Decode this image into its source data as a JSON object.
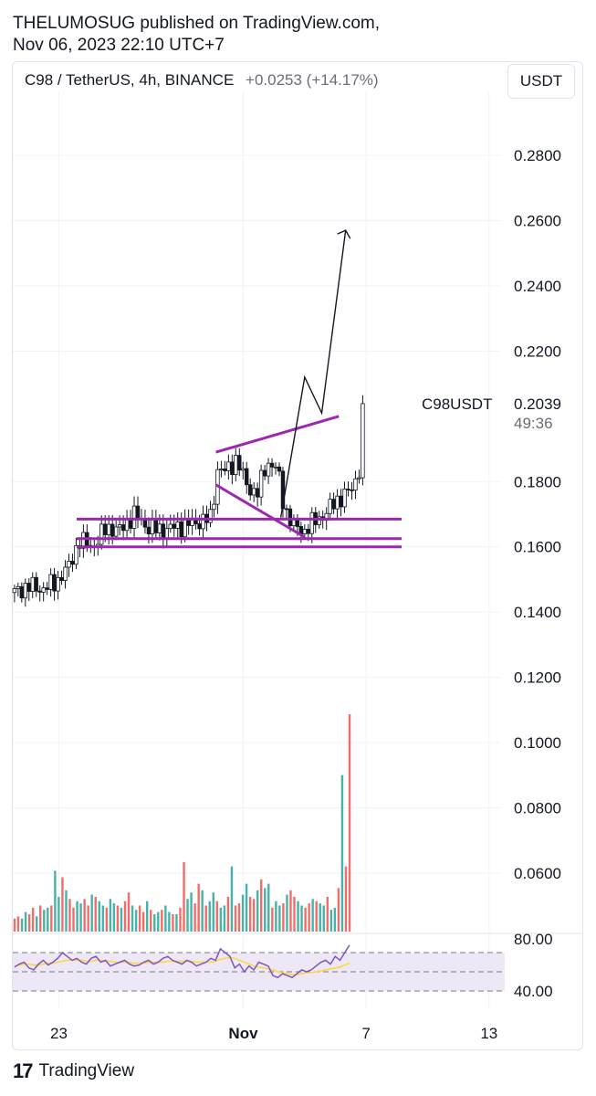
{
  "header": {
    "line1": "THELUMOSUG published on TradingView.com,",
    "line2": "Nov 06, 2023 22:10 UTC+7"
  },
  "symbol": {
    "title": "C98 / TetherUS, 4h, BINANCE",
    "change": "+0.0253 (+14.17%)",
    "currency_button": "USDT",
    "ticker_label": "C98USDT",
    "last_price": "0.2039",
    "countdown": "49:36"
  },
  "footer": {
    "brand": "TradingView",
    "logo_icon": "tradingview-logo-icon"
  },
  "colors": {
    "up": "#26a69a",
    "down": "#ef5350",
    "drawing": "#9c27b0",
    "rsi_line": "#7e57c2",
    "rsi_ma": "#fdd835",
    "rsi_band": "#ede7f6",
    "grid": "#f0f3fa"
  },
  "chart_data": [
    {
      "type": "line",
      "title": "C98 / TetherUS, 4h, BINANCE",
      "xlabel": "",
      "ylabel": "",
      "ylim": [
        0.04,
        0.29
      ],
      "y_ticks": [
        "0.2800",
        "0.2600",
        "0.2400",
        "0.2200",
        "0.1800",
        "0.1600",
        "0.1400",
        "0.1200",
        "0.1000",
        "0.0800",
        "0.0600"
      ],
      "y_tick_values": [
        0.28,
        0.26,
        0.24,
        0.22,
        0.18,
        0.16,
        0.14,
        0.12,
        0.1,
        0.08,
        0.06
      ],
      "x_tick_labels": [
        "23",
        "Nov",
        "7",
        "13"
      ],
      "x_tick_dates": [
        "2023-10-23",
        "2023-11-01",
        "2023-11-07",
        "2023-11-13"
      ],
      "grid": true,
      "price_path": [
        {
          "x": "2023-10-20 20:00",
          "y": 0.146
        },
        {
          "x": "2023-10-21 12:00",
          "y": 0.148
        },
        {
          "x": "2023-10-22 04:00",
          "y": 0.147
        },
        {
          "x": "2023-10-22 20:00",
          "y": 0.149
        },
        {
          "x": "2023-10-23 12:00",
          "y": 0.154
        },
        {
          "x": "2023-10-24 00:00",
          "y": 0.162
        },
        {
          "x": "2023-10-24 16:00",
          "y": 0.16
        },
        {
          "x": "2023-10-25 08:00",
          "y": 0.166
        },
        {
          "x": "2023-10-26 00:00",
          "y": 0.165
        },
        {
          "x": "2023-10-26 16:00",
          "y": 0.17
        },
        {
          "x": "2023-10-27 08:00",
          "y": 0.166
        },
        {
          "x": "2023-10-28 00:00",
          "y": 0.165
        },
        {
          "x": "2023-10-28 16:00",
          "y": 0.166
        },
        {
          "x": "2023-10-29 08:00",
          "y": 0.167
        },
        {
          "x": "2023-10-30 00:00",
          "y": 0.168
        },
        {
          "x": "2023-10-30 12:00",
          "y": 0.169
        },
        {
          "x": "2023-10-30 16:00",
          "y": 0.184
        },
        {
          "x": "2023-10-31 04:00",
          "y": 0.183
        },
        {
          "x": "2023-10-31 16:00",
          "y": 0.187
        },
        {
          "x": "2023-11-01 04:00",
          "y": 0.179
        },
        {
          "x": "2023-11-01 16:00",
          "y": 0.176
        },
        {
          "x": "2023-11-02 04:00",
          "y": 0.186
        },
        {
          "x": "2023-11-02 16:00",
          "y": 0.184
        },
        {
          "x": "2023-11-03 00:00",
          "y": 0.172
        },
        {
          "x": "2023-11-03 12:00",
          "y": 0.166
        },
        {
          "x": "2023-11-04 00:00",
          "y": 0.165
        },
        {
          "x": "2023-11-04 12:00",
          "y": 0.168
        },
        {
          "x": "2023-11-05 00:00",
          "y": 0.17
        },
        {
          "x": "2023-11-05 12:00",
          "y": 0.174
        },
        {
          "x": "2023-11-06 00:00",
          "y": 0.176
        },
        {
          "x": "2023-11-06 08:00",
          "y": 0.178
        },
        {
          "x": "2023-11-06 16:00",
          "y": 0.184
        },
        {
          "x": "2023-11-06 20:00",
          "y": 0.2039
        }
      ],
      "drawings": {
        "horizontal_lines": [
          0.1685,
          0.1625,
          0.16
        ],
        "triangle_upper": [
          {
            "x": "2023-10-30 16:00",
            "y": 0.189
          },
          {
            "x": "2023-11-05 16:00",
            "y": 0.2
          }
        ],
        "triangle_lower": [
          {
            "x": "2023-10-30 16:00",
            "y": 0.179
          },
          {
            "x": "2023-11-04 00:00",
            "y": 0.163
          }
        ],
        "projection_arrow": [
          {
            "x": "2023-11-02 20:00",
            "y": 0.169
          },
          {
            "x": "2023-11-04 00:00",
            "y": 0.212
          },
          {
            "x": "2023-11-04 20:00",
            "y": 0.201
          },
          {
            "x": "2023-11-06 00:00",
            "y": 0.257
          }
        ]
      }
    },
    {
      "type": "bar",
      "title": "",
      "series": [
        {
          "values": [
            6,
            7,
            6,
            9,
            8,
            11,
            7,
            12,
            10,
            11,
            12,
            28,
            16,
            25,
            19,
            15,
            11,
            14,
            13,
            15,
            12,
            17,
            16,
            14,
            12,
            11,
            15,
            13,
            12,
            11,
            14,
            18,
            12,
            10,
            12,
            9,
            14,
            10,
            8,
            9,
            10,
            12,
            9,
            8,
            8,
            11,
            32,
            15,
            18,
            13,
            22,
            19,
            12,
            14,
            18,
            14,
            11,
            12,
            16,
            30,
            12,
            13,
            17,
            22,
            16,
            15,
            19,
            24,
            20,
            22,
            11,
            14,
            12,
            13,
            17,
            19,
            16,
            14,
            12,
            11,
            13,
            15,
            14,
            13,
            12,
            16,
            10,
            11,
            20,
            72,
            30,
            100
          ]
        }
      ],
      "max_value": 100
    },
    {
      "type": "line",
      "title": "",
      "ylim": [
        30,
        80
      ],
      "y_ticks": [
        "80.00",
        "40.00"
      ],
      "bands": [
        70,
        50,
        30
      ],
      "series": [
        {
          "name": "",
          "values": [
            55,
            58,
            60,
            54,
            52,
            58,
            62,
            57,
            60,
            64,
            70,
            66,
            62,
            64,
            60,
            58,
            64,
            66,
            60,
            62,
            56,
            58,
            60,
            62,
            58,
            56,
            57,
            60,
            62,
            58,
            60,
            64,
            66,
            62,
            60,
            58,
            62,
            60,
            56,
            58,
            60,
            64,
            62,
            74,
            70,
            66,
            54,
            58,
            50,
            56,
            52,
            60,
            58,
            56,
            46,
            44,
            48,
            46,
            44,
            48,
            52,
            50,
            52,
            56,
            60,
            62,
            58,
            66,
            62,
            70,
            78
          ]
        },
        {
          "name": "",
          "values": [
            56,
            57,
            58,
            58,
            57,
            57,
            58,
            59,
            59,
            60,
            61,
            62,
            62,
            62,
            62,
            61,
            61,
            62,
            62,
            61,
            61,
            60,
            60,
            60,
            60,
            59,
            59,
            59,
            60,
            60,
            60,
            60,
            61,
            61,
            61,
            61,
            61,
            61,
            60,
            60,
            60,
            60,
            61,
            63,
            64,
            65,
            64,
            62,
            60,
            58,
            56,
            55,
            54,
            53,
            52,
            50,
            49,
            48,
            47,
            47,
            48,
            49,
            49,
            50,
            51,
            52,
            53,
            54,
            55,
            57,
            59
          ]
        }
      ]
    }
  ]
}
